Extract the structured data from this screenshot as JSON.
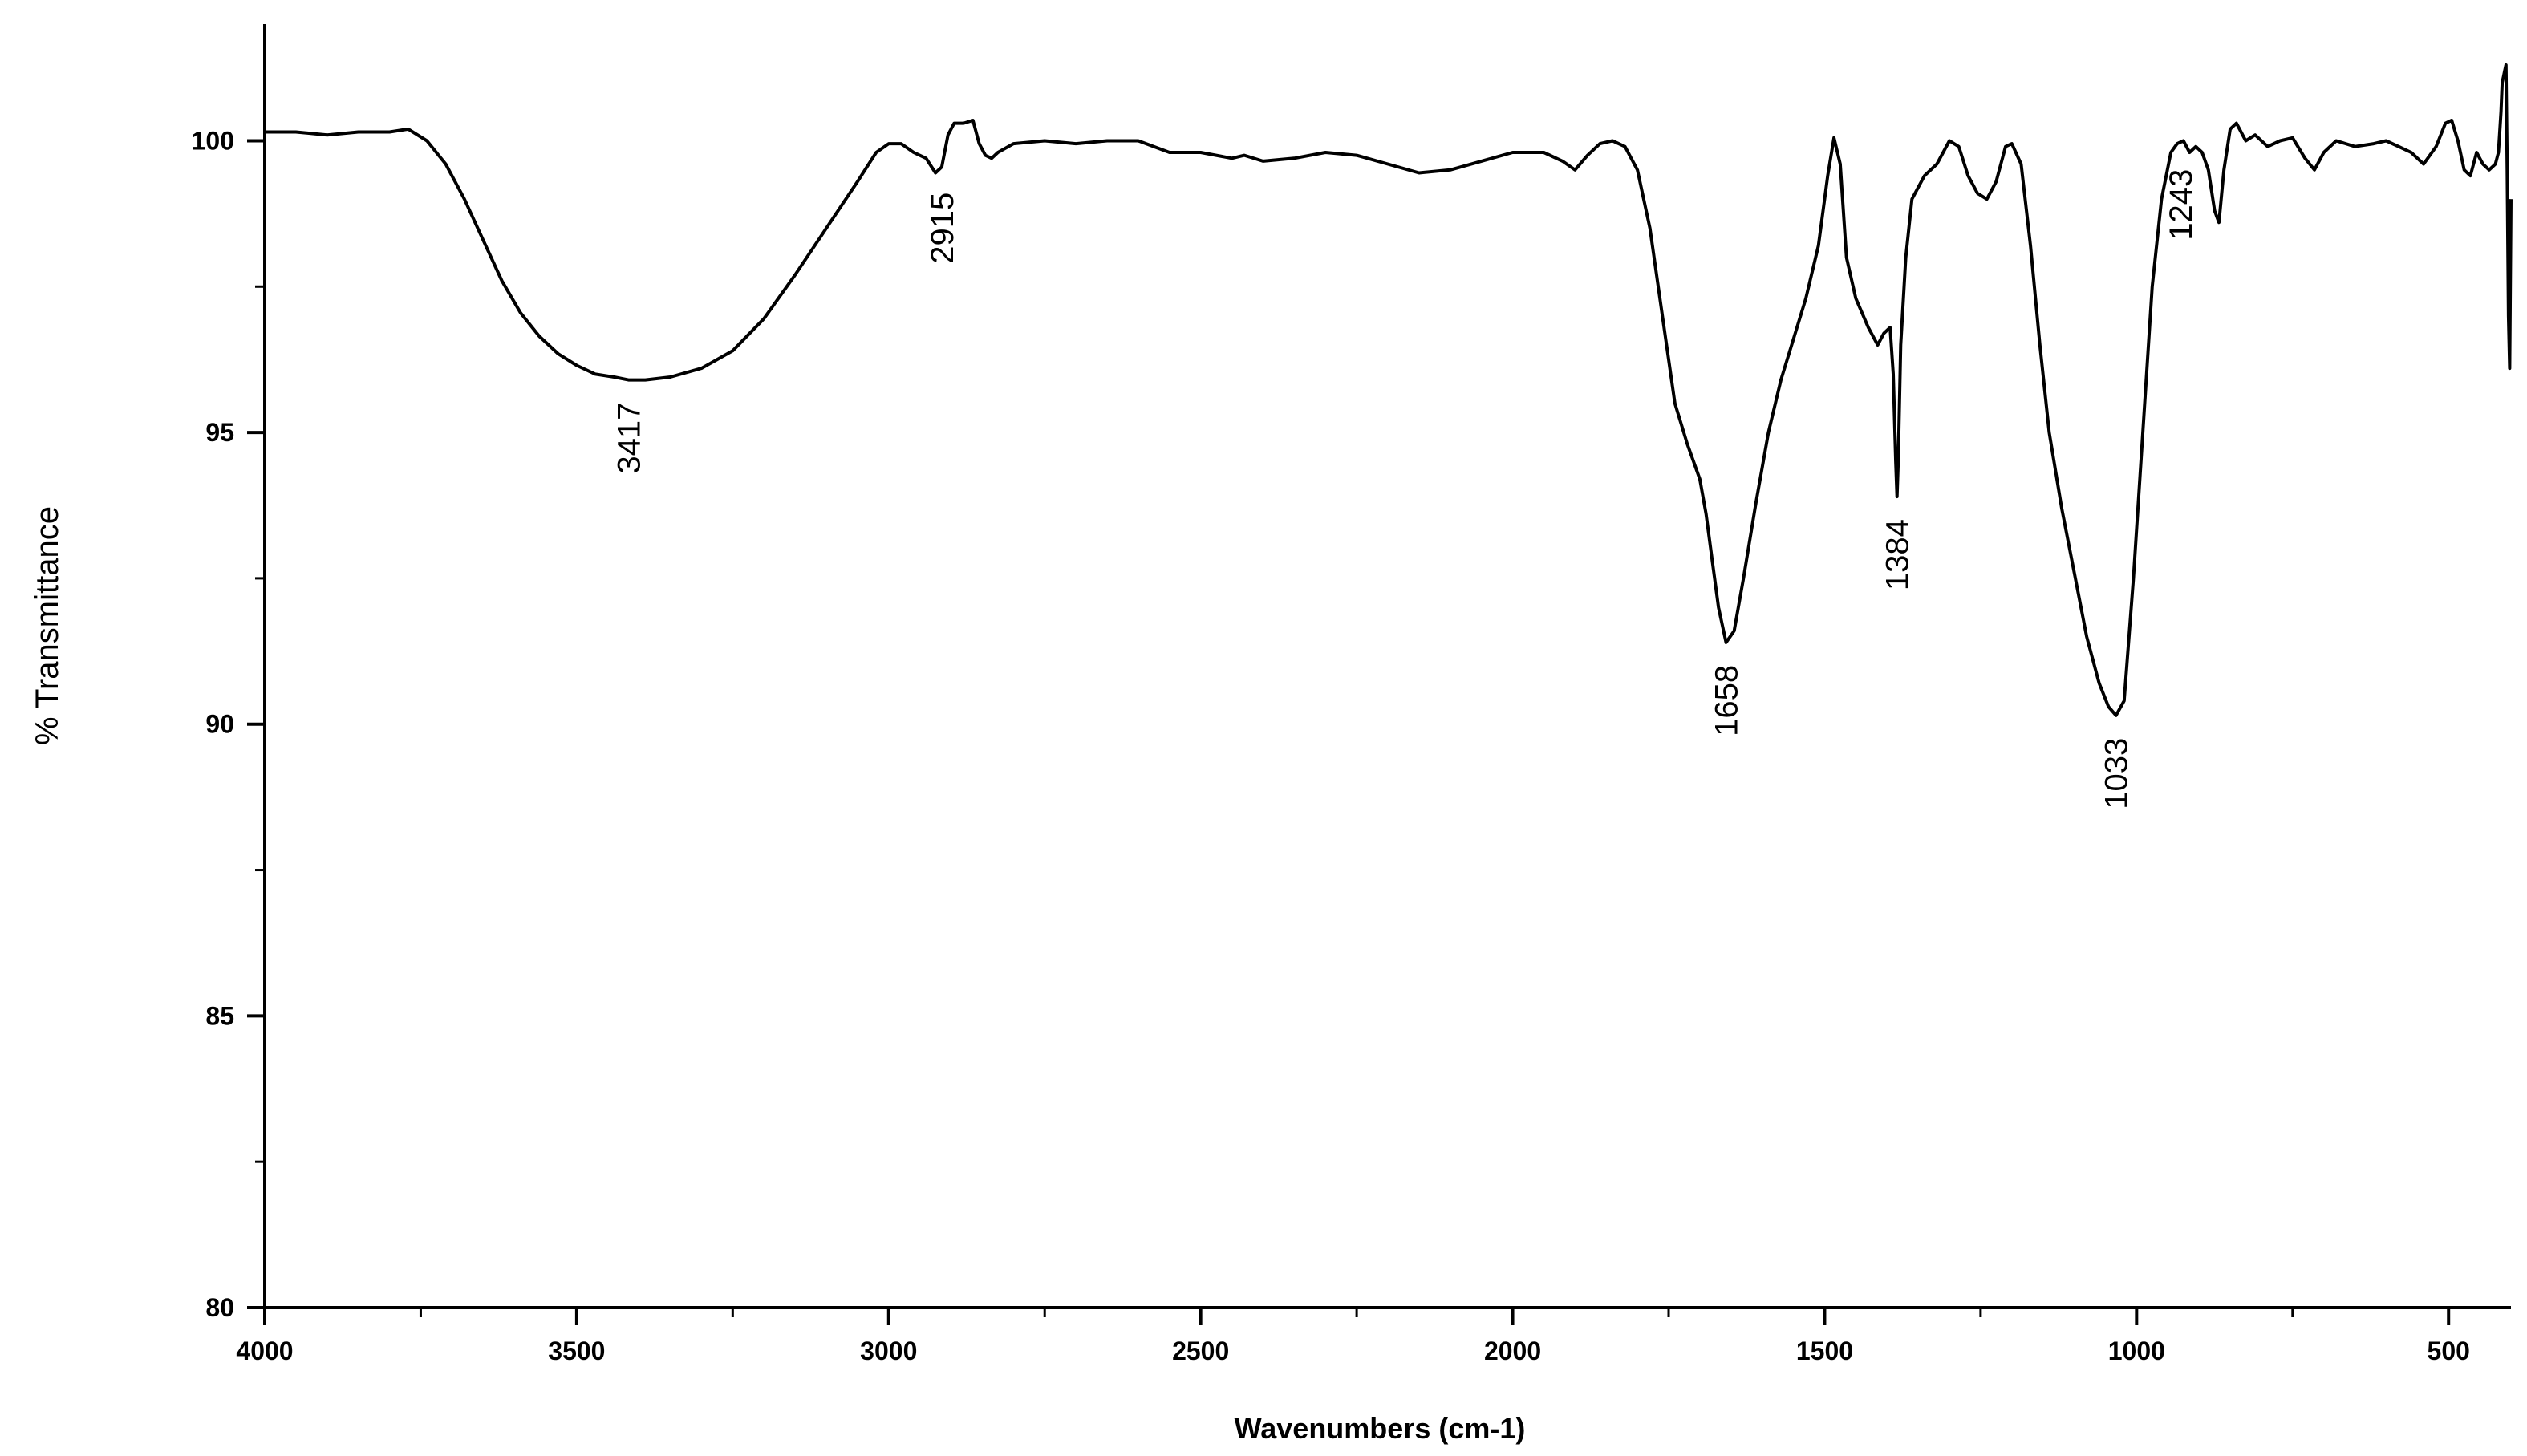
{
  "chart_data": {
    "type": "line",
    "title": "",
    "xlabel": "Wavenumbers (cm-1)",
    "ylabel": "% Transmittance",
    "xlim": [
      4000,
      400
    ],
    "ylim": [
      80,
      102
    ],
    "x_reversed": true,
    "grid": false,
    "legend": "none",
    "x_ticks": [
      4000,
      3500,
      3000,
      2500,
      2000,
      1500,
      1000,
      500
    ],
    "x_tick_labels": [
      "4000",
      "3500",
      "3000",
      "2500",
      "2000",
      "1500",
      "1000",
      "500"
    ],
    "y_ticks": [
      80,
      85,
      90,
      95,
      100
    ],
    "y_tick_labels": [
      "80",
      "85",
      "90",
      "95",
      "100"
    ],
    "line_color": "#000000",
    "series": [
      {
        "x": [
          4000,
          3950,
          3900,
          3850,
          3800,
          3770,
          3740,
          3710,
          3680,
          3650,
          3620,
          3590,
          3560,
          3530,
          3500,
          3470,
          3440,
          3417,
          3390,
          3350,
          3300,
          3250,
          3200,
          3150,
          3100,
          3050,
          3020,
          3000,
          2980,
          2960,
          2940,
          2925,
          2915,
          2905,
          2895,
          2880,
          2865,
          2855,
          2845,
          2835,
          2825,
          2800,
          2750,
          2700,
          2650,
          2600,
          2550,
          2500,
          2450,
          2430,
          2400,
          2350,
          2300,
          2250,
          2200,
          2150,
          2100,
          2050,
          2000,
          1950,
          1920,
          1900,
          1880,
          1860,
          1840,
          1820,
          1800,
          1780,
          1760,
          1740,
          1720,
          1700,
          1690,
          1680,
          1670,
          1658,
          1645,
          1630,
          1610,
          1590,
          1570,
          1550,
          1530,
          1510,
          1495,
          1485,
          1475,
          1465,
          1450,
          1430,
          1415,
          1405,
          1395,
          1390,
          1386,
          1384,
          1382,
          1378,
          1370,
          1360,
          1340,
          1320,
          1300,
          1285,
          1270,
          1255,
          1240,
          1225,
          1210,
          1200,
          1185,
          1170,
          1155,
          1140,
          1120,
          1100,
          1080,
          1060,
          1045,
          1033,
          1020,
          1005,
          990,
          975,
          960,
          945,
          935,
          925,
          915,
          905,
          895,
          885,
          875,
          868,
          860,
          850,
          840,
          825,
          810,
          790,
          770,
          750,
          730,
          715,
          700,
          680,
          650,
          620,
          600,
          580,
          560,
          540,
          520,
          505,
          495,
          485,
          475,
          465,
          455,
          445,
          435,
          425,
          420,
          416,
          414,
          412,
          410,
          408,
          406,
          404,
          402,
          400
        ],
        "y": [
          100.15,
          100.15,
          100.1,
          100.15,
          100.15,
          100.2,
          100.0,
          99.6,
          99.0,
          98.3,
          97.6,
          97.05,
          96.65,
          96.35,
          96.15,
          96.0,
          95.95,
          95.9,
          95.9,
          95.95,
          96.1,
          96.4,
          96.95,
          97.7,
          98.5,
          99.3,
          99.8,
          99.95,
          99.95,
          99.8,
          99.7,
          99.45,
          99.55,
          100.1,
          100.3,
          100.3,
          100.35,
          99.95,
          99.75,
          99.7,
          99.8,
          99.95,
          100.0,
          99.95,
          100.0,
          100.0,
          99.8,
          99.8,
          99.7,
          99.75,
          99.65,
          99.7,
          99.8,
          99.75,
          99.6,
          99.45,
          99.5,
          99.65,
          99.8,
          99.8,
          99.65,
          99.5,
          99.75,
          99.95,
          100.0,
          99.9,
          99.5,
          98.5,
          97.0,
          95.5,
          94.8,
          94.2,
          93.6,
          92.8,
          92.0,
          91.4,
          91.6,
          92.5,
          93.8,
          95.0,
          95.9,
          96.6,
          97.3,
          98.2,
          99.4,
          100.05,
          99.6,
          98.0,
          97.3,
          96.8,
          96.5,
          96.7,
          96.8,
          96.0,
          94.5,
          93.9,
          94.5,
          96.5,
          98.0,
          99.0,
          99.4,
          99.6,
          100.0,
          99.9,
          99.4,
          99.1,
          99.0,
          99.3,
          99.9,
          99.95,
          99.6,
          98.2,
          96.5,
          95.0,
          93.7,
          92.6,
          91.5,
          90.7,
          90.3,
          90.15,
          90.4,
          92.5,
          95.0,
          97.5,
          99.0,
          99.8,
          99.95,
          100.0,
          99.8,
          99.9,
          99.8,
          99.5,
          98.8,
          98.6,
          99.5,
          100.2,
          100.3,
          100.0,
          100.1,
          99.9,
          100.0,
          100.05,
          99.7,
          99.5,
          99.8,
          100.0,
          99.9,
          99.95,
          100.0,
          99.9,
          99.8,
          99.6,
          99.9,
          100.3,
          100.35,
          100.0,
          99.5,
          99.4,
          99.8,
          99.6,
          99.5,
          99.6,
          99.8,
          100.5,
          101.0,
          101.1,
          101.2,
          101.3,
          99.5,
          97.0,
          96.1,
          99.0
        ]
      }
    ],
    "annotations": [
      {
        "label": "3417",
        "x": 3417,
        "y": 95.9
      },
      {
        "label": "2915",
        "x": 2915,
        "y": 99.5
      },
      {
        "label": "1658",
        "x": 1658,
        "y": 91.4
      },
      {
        "label": "1384",
        "x": 1384,
        "y": 93.9
      },
      {
        "label": "1033",
        "x": 1033,
        "y": 90.15
      },
      {
        "label": "1243",
        "x": 930,
        "y": 99.9
      }
    ]
  }
}
